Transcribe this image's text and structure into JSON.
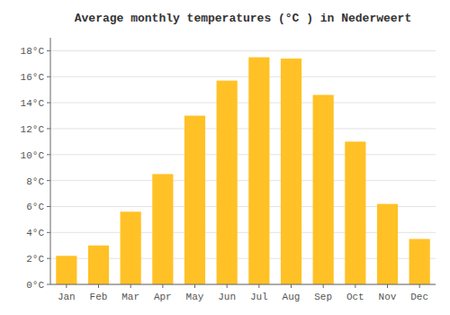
{
  "chart_data": {
    "type": "bar",
    "title": "Average monthly temperatures (°C ) in Nederweert",
    "categories": [
      "Jan",
      "Feb",
      "Mar",
      "Apr",
      "May",
      "Jun",
      "Jul",
      "Aug",
      "Sep",
      "Oct",
      "Nov",
      "Dec"
    ],
    "values": [
      2.2,
      3.0,
      5.6,
      8.5,
      13.0,
      15.7,
      17.5,
      17.4,
      14.6,
      11.0,
      6.2,
      3.5
    ],
    "color": "#FFC125",
    "ylim": [
      0,
      19
    ],
    "yticks": [
      {
        "value": 0,
        "label": "0°C"
      },
      {
        "value": 2,
        "label": "2°C"
      },
      {
        "value": 4,
        "label": "4°C"
      },
      {
        "value": 6,
        "label": "6°C"
      },
      {
        "value": 8,
        "label": "8°C"
      },
      {
        "value": 10,
        "label": "10°C"
      },
      {
        "value": 12,
        "label": "12°C"
      },
      {
        "value": 14,
        "label": "14°C"
      },
      {
        "value": 16,
        "label": "16°C"
      },
      {
        "value": 18,
        "label": "18°C"
      }
    ],
    "grid": true
  }
}
